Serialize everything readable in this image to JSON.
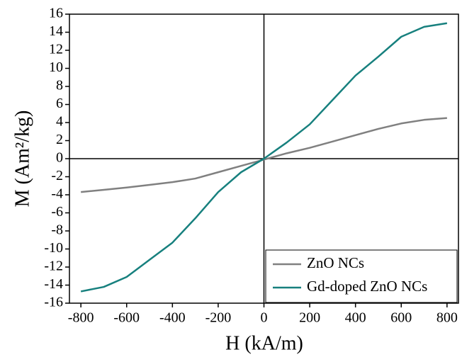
{
  "chart_data": {
    "type": "line",
    "x_label": "H (kA/m)",
    "y_label": "M (Am²/kg)",
    "x": [
      -800,
      -700,
      -600,
      -500,
      -400,
      -300,
      -200,
      -100,
      0,
      100,
      200,
      300,
      400,
      500,
      600,
      700,
      800
    ],
    "series": [
      {
        "name": "ZnO NCs",
        "color": "#808080",
        "values": [
          -3.7,
          -3.45,
          -3.2,
          -2.9,
          -2.6,
          -2.2,
          -1.5,
          -0.8,
          -0.1,
          0.6,
          1.2,
          1.9,
          2.6,
          3.3,
          3.9,
          4.3,
          4.5
        ]
      },
      {
        "name": "Gd-doped ZnO NCs",
        "color": "#17807e",
        "values": [
          -14.7,
          -14.2,
          -13.1,
          -11.2,
          -9.3,
          -6.6,
          -3.7,
          -1.5,
          0,
          1.8,
          3.8,
          6.5,
          9.2,
          11.3,
          13.5,
          14.6,
          15
        ]
      }
    ],
    "xlim": [
      -850,
      850
    ],
    "ylim": [
      -16,
      16
    ],
    "xticks": [
      -800,
      -600,
      -400,
      -200,
      0,
      200,
      400,
      600,
      800
    ],
    "yticks": [
      -16,
      -14,
      -12,
      -10,
      -8,
      -6,
      -4,
      -2,
      0,
      2,
      4,
      6,
      8,
      10,
      12,
      14,
      16
    ],
    "legend": "lower right"
  }
}
